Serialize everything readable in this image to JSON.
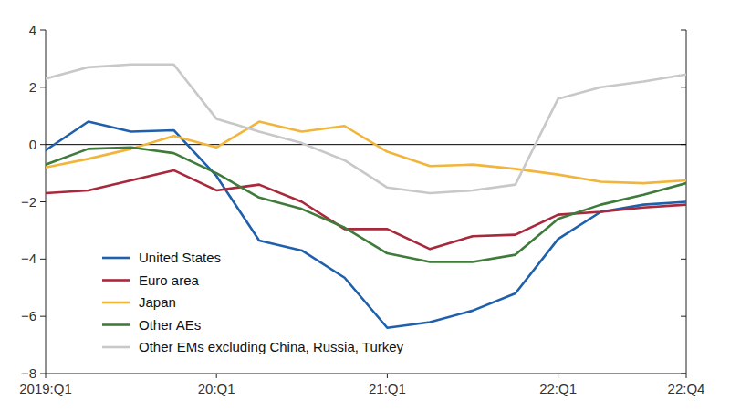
{
  "chart_data": {
    "type": "line",
    "categories": [
      "2019:Q1",
      null,
      null,
      null,
      "20:Q1",
      null,
      null,
      null,
      "21:Q1",
      null,
      null,
      null,
      "22:Q1",
      null,
      null,
      "22:Q4"
    ],
    "series": [
      {
        "name": "United States",
        "color": "#1f60ad",
        "values": [
          -0.2,
          0.8,
          0.45,
          0.5,
          -1.1,
          -3.35,
          -3.7,
          -4.65,
          -6.4,
          -6.2,
          -5.8,
          -5.2,
          -3.3,
          -2.35,
          -2.1,
          -2.0
        ]
      },
      {
        "name": "Euro area",
        "color": "#a8283c",
        "values": [
          -1.7,
          -1.6,
          -1.25,
          -0.9,
          -1.6,
          -1.4,
          -2.0,
          -2.95,
          -2.95,
          -3.65,
          -3.2,
          -3.15,
          -2.45,
          -2.35,
          -2.2,
          -2.1
        ]
      },
      {
        "name": "Japan",
        "color": "#f2b53c",
        "values": [
          -0.8,
          -0.5,
          -0.15,
          0.3,
          -0.1,
          0.8,
          0.45,
          0.65,
          -0.25,
          -0.75,
          -0.7,
          -0.85,
          -1.05,
          -1.3,
          -1.35,
          -1.25
        ]
      },
      {
        "name": "Other AEs",
        "color": "#3f7b3a",
        "values": [
          -0.7,
          -0.15,
          -0.1,
          -0.3,
          -1.0,
          -1.85,
          -2.25,
          -2.9,
          -3.8,
          -4.1,
          -4.1,
          -3.85,
          -2.6,
          -2.1,
          -1.75,
          -1.35
        ]
      },
      {
        "name": "Other EMs excluding China, Russia, Turkey",
        "color": "#c8c8c8",
        "values": [
          2.3,
          2.7,
          2.8,
          2.8,
          0.9,
          0.45,
          0.05,
          -0.55,
          -1.5,
          -1.7,
          -1.6,
          -1.4,
          1.6,
          2.0,
          2.2,
          2.45
        ]
      }
    ],
    "ylim": [
      -8,
      4
    ],
    "yticks": [
      -8,
      -6,
      -4,
      -2,
      0,
      2,
      4
    ],
    "grid": false,
    "legend": "lower left"
  }
}
